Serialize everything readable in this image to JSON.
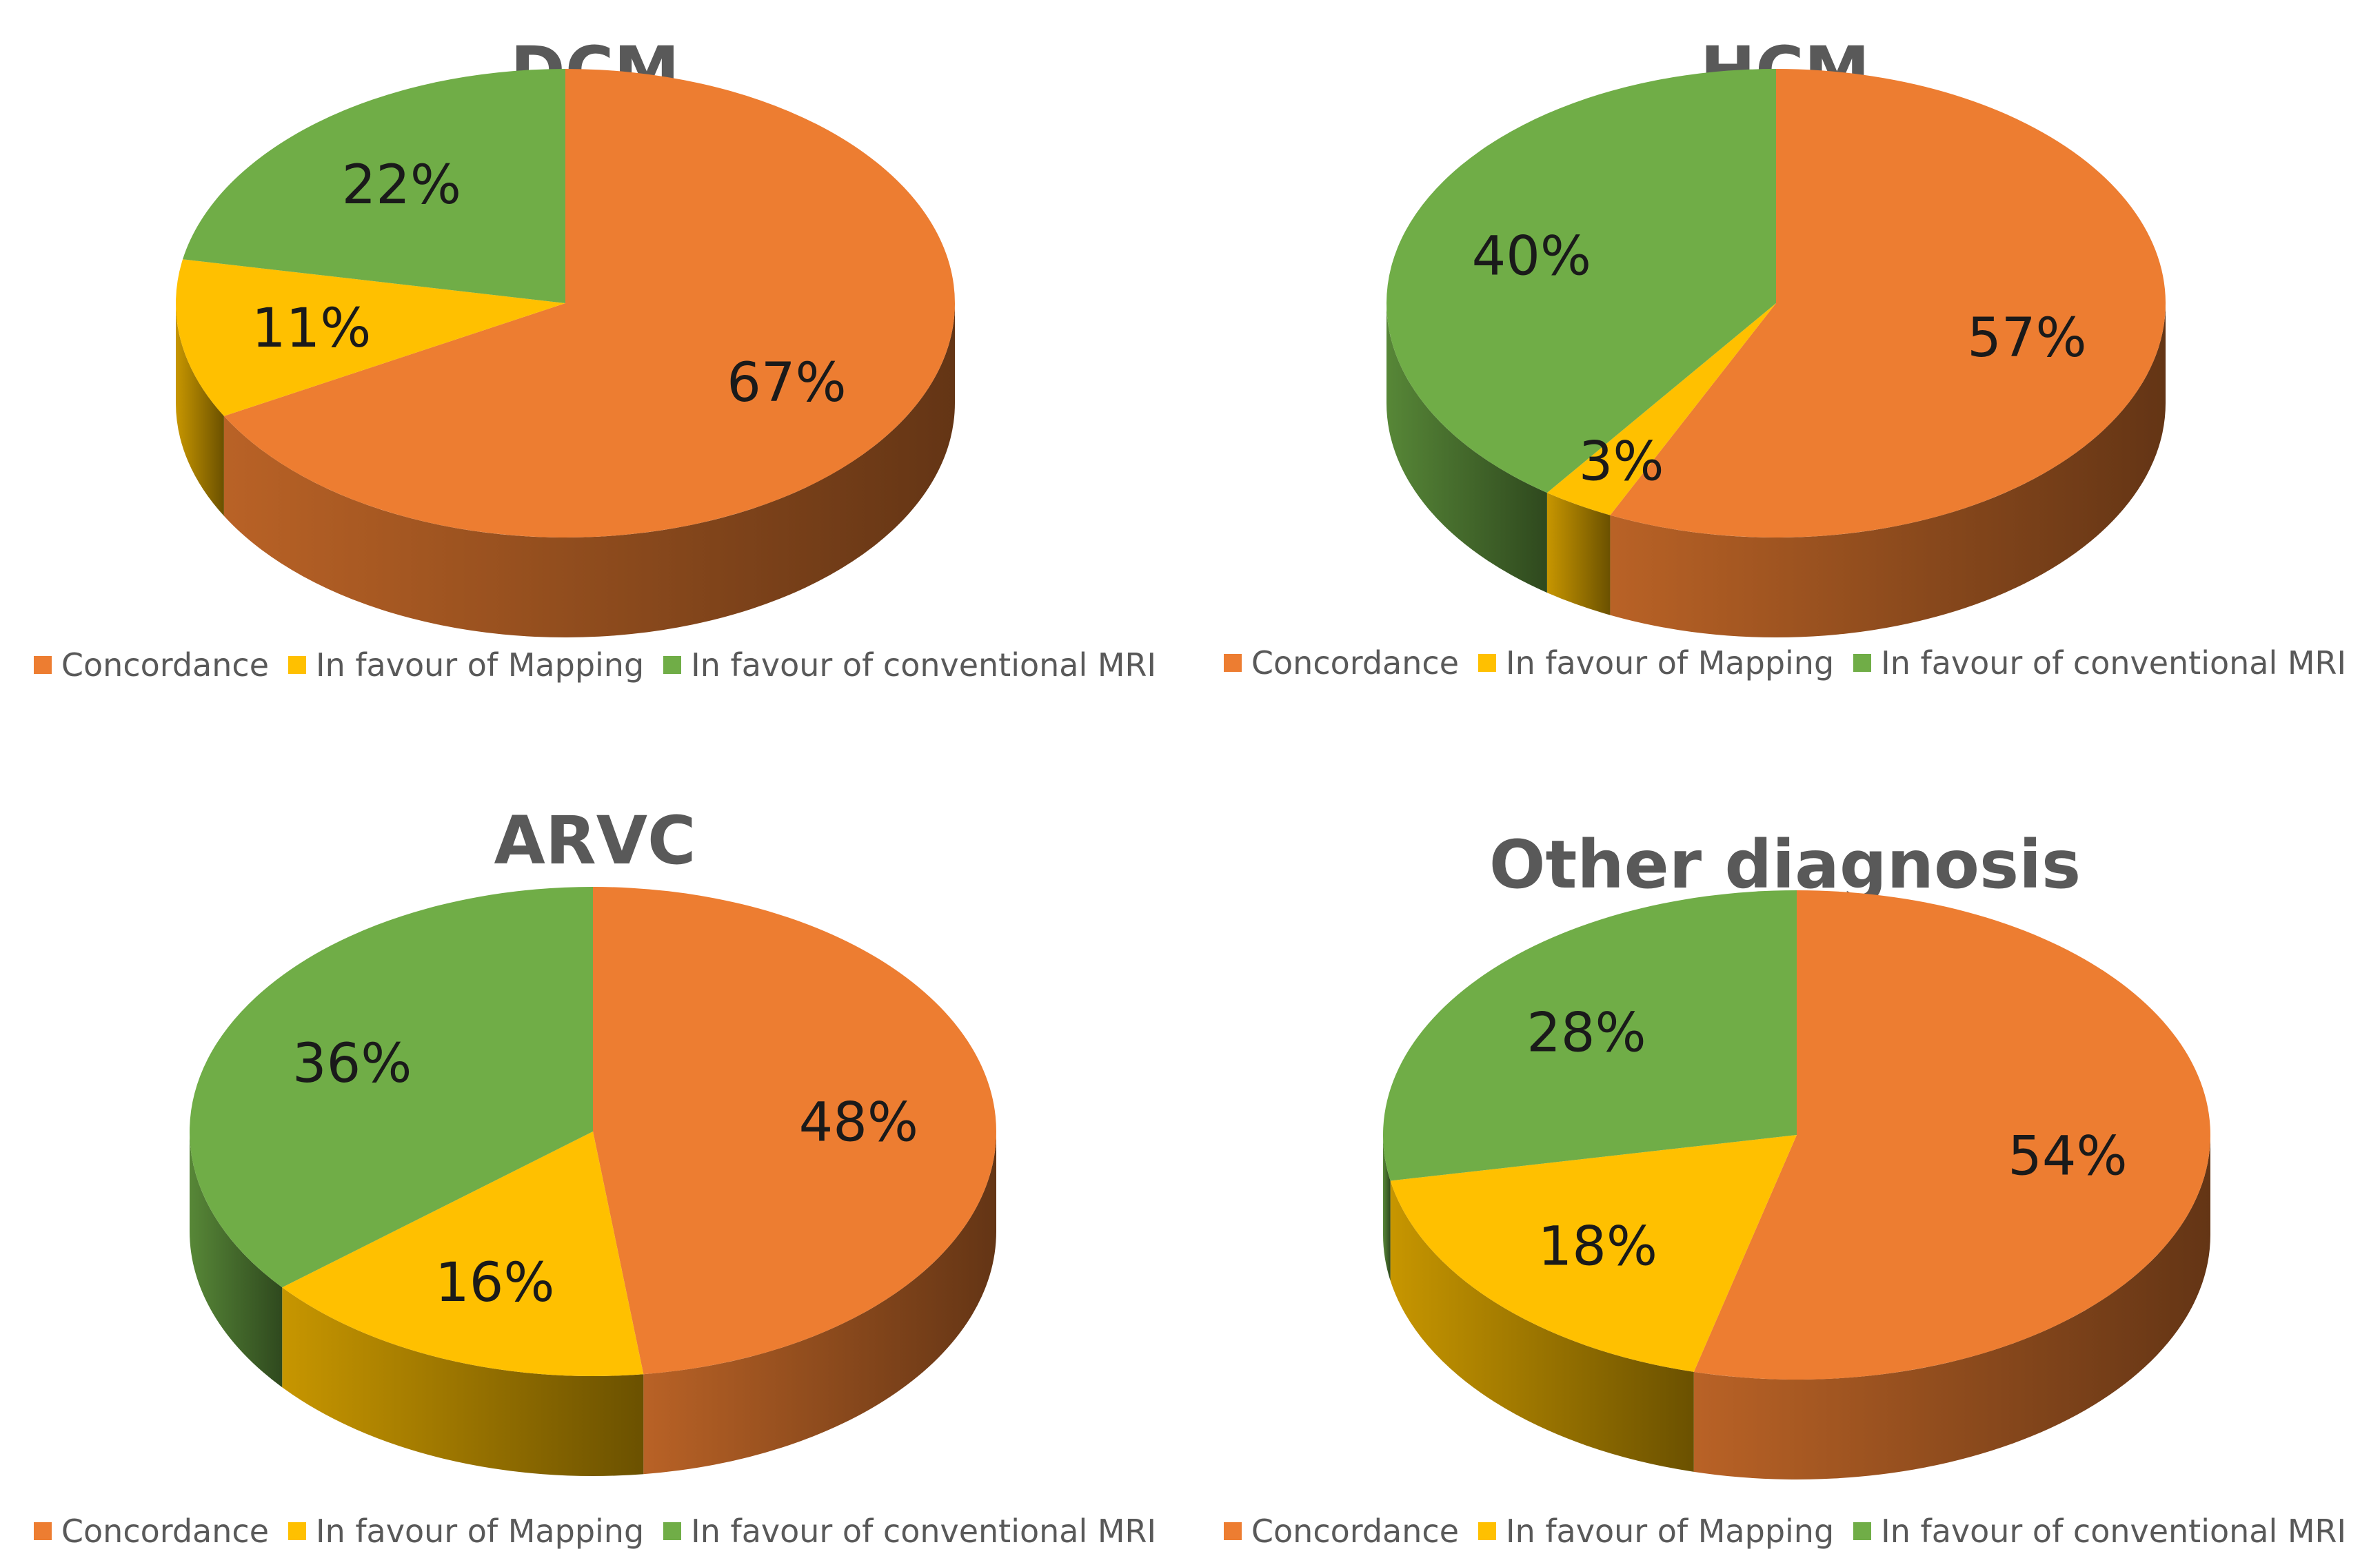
{
  "colors": {
    "concordance": "#ED7D31",
    "mapping": "#FFC000",
    "conventional": "#70AD47",
    "title": "#595959",
    "legend_text": "#595959",
    "label_text": "#1a1a1a"
  },
  "chart_data": [
    {
      "type": "pie",
      "title": "DCM",
      "categories": [
        "Concordance",
        "In favour of Mapping",
        "In favour of conventional MRI"
      ],
      "values": [
        67,
        11,
        22
      ],
      "labels": [
        "67%",
        "11%",
        "22%"
      ],
      "legend": [
        "Concordance",
        "In favour of Mapping",
        "In favour of conventional MRI"
      ],
      "legend_position": "bottom"
    },
    {
      "type": "pie",
      "title": "HCM",
      "categories": [
        "Concordance",
        "In favour of Mapping",
        "In favour of conventional MRI"
      ],
      "values": [
        57,
        3,
        40
      ],
      "labels": [
        "57%",
        "3%",
        "40%"
      ],
      "legend": [
        "Concordance",
        "In favour of Mapping",
        "In favour of conventional MRI"
      ],
      "legend_position": "bottom"
    },
    {
      "type": "pie",
      "title": "ARVC",
      "categories": [
        "Concordance",
        "In favour of Mapping",
        "In favour of conventional MRI"
      ],
      "values": [
        48,
        16,
        36
      ],
      "labels": [
        "48%",
        "16%",
        "36%"
      ],
      "legend": [
        "Concordance",
        "In favour of Mapping",
        "In favour of conventional MRI"
      ],
      "legend_position": "bottom"
    },
    {
      "type": "pie",
      "title": "Other diagnosis",
      "categories": [
        "Concordance",
        "In favour of Mapping",
        "In favour of conventional MRI"
      ],
      "values": [
        54,
        18,
        28
      ],
      "labels": [
        "54%",
        "18%",
        "28%"
      ],
      "legend": [
        "Concordance",
        "In favour of Mapping",
        "In favour of conventional MRI"
      ],
      "legend_position": "bottom"
    }
  ]
}
